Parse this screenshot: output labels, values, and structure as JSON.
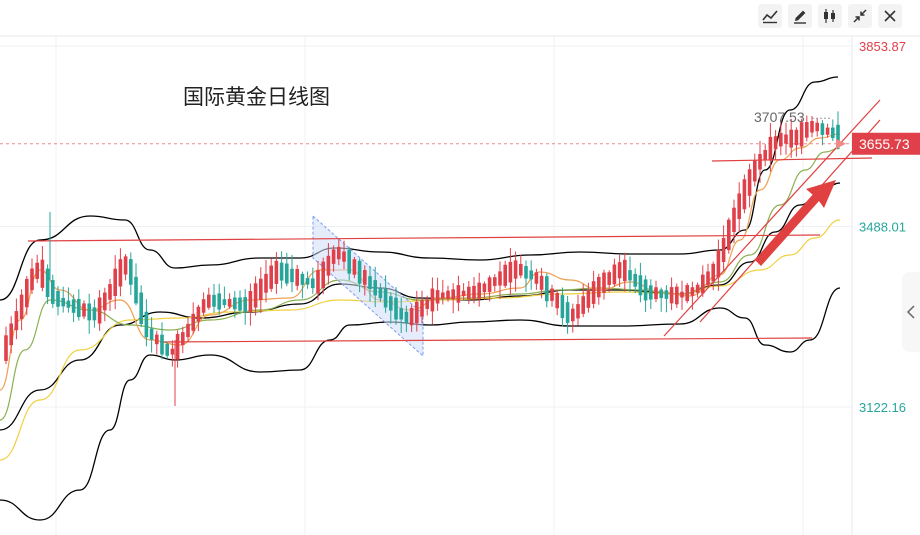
{
  "toolbar": {
    "icons": [
      "line-tool-icon",
      "pencil-icon",
      "candlestick-icon",
      "collapse-icon",
      "close-icon"
    ]
  },
  "chart_data": {
    "type": "candlestick",
    "title": "国际黄金日线图",
    "y_axis": {
      "ticks": [
        {
          "value": 3853.87,
          "label": "3853.87",
          "color": "#e0404a"
        },
        {
          "value": 3488.01,
          "label": "3488.01",
          "color": "#26a69a"
        },
        {
          "value": 3122.16,
          "label": "3122.16",
          "color": "#26a69a"
        }
      ]
    },
    "current_price": {
      "value": 3655.73,
      "label": "3655.73",
      "color": "#e0404a"
    },
    "high_annotation": {
      "value": 3707.53,
      "label": "3707.53"
    },
    "grid": true,
    "colors": {
      "up": "#e0404a",
      "down": "#26a69a",
      "boll_bands": "#000000",
      "ma_fast": "#f0a050",
      "ma_mid": "#8cb050",
      "ma_slow": "#f0d040",
      "trendlines": "#e04040",
      "channel_fill": "#cfdcfa",
      "channel_border": "#7a9cf0"
    }
  }
}
